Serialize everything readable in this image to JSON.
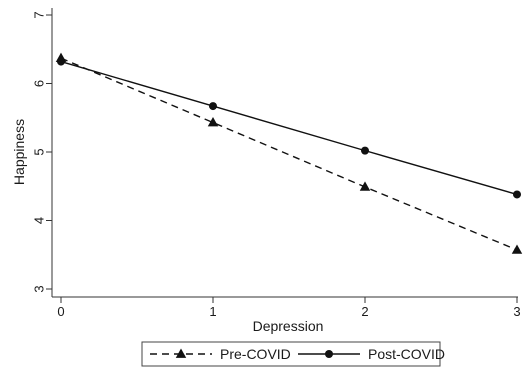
{
  "chart_data": {
    "type": "line",
    "xlabel": "Depression",
    "ylabel": "Happiness",
    "x": [
      0,
      1,
      2,
      3
    ],
    "xlim": [
      0,
      3
    ],
    "ylim": [
      3,
      7
    ],
    "x_ticks": [
      0,
      1,
      2,
      3
    ],
    "y_ticks": [
      3,
      4,
      5,
      6,
      7
    ],
    "grid": false,
    "legend_position": "bottom",
    "series": [
      {
        "name": "Pre-COVID",
        "values": [
          6.37,
          5.43,
          4.49,
          3.57
        ],
        "line_style": "dashed",
        "marker": "triangle",
        "color": "#111111"
      },
      {
        "name": "Post-COVID",
        "values": [
          6.32,
          5.67,
          5.02,
          4.38
        ],
        "line_style": "solid",
        "marker": "circle",
        "color": "#111111"
      }
    ]
  }
}
